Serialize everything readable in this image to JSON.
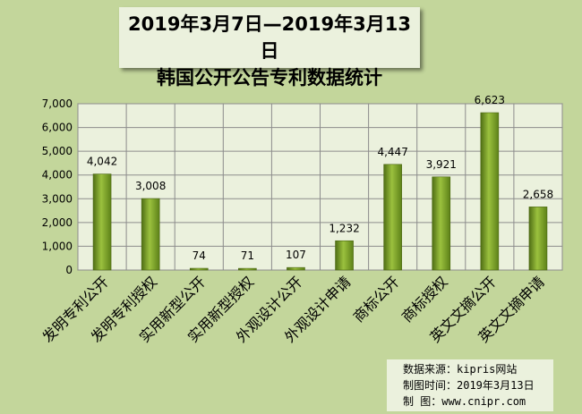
{
  "title": {
    "line1": "2019年3月7日—2019年3月13日",
    "line2": "韩国公开公告专利数据统计"
  },
  "source": {
    "line1": "数据来源：kipris网站",
    "line2": "制图时间：2019年3月13日",
    "line3": "制    图：www.cnipr.com"
  },
  "chart_data": {
    "type": "bar",
    "categories": [
      "发明专利公开",
      "发明专利授权",
      "实用新型公开",
      "实用新型授权",
      "外观设计公开",
      "外观设计申请",
      "商标公开",
      "商标授权",
      "英文文摘公开",
      "英文文摘申请"
    ],
    "values": [
      4042,
      3008,
      74,
      71,
      107,
      1232,
      4447,
      3921,
      6623,
      2658
    ],
    "value_labels": [
      "4,042",
      "3,008",
      "74",
      "71",
      "107",
      "1,232",
      "4,447",
      "3,921",
      "6,623",
      "2,658"
    ],
    "ylim": [
      0,
      7000
    ],
    "yticks": [
      0,
      1000,
      2000,
      3000,
      4000,
      5000,
      6000,
      7000
    ],
    "ytick_labels": [
      "0",
      "1,000",
      "2,000",
      "3,000",
      "4,000",
      "5,000",
      "6,000",
      "7,000"
    ],
    "grid": true,
    "bar_color": "#7aa32b",
    "plot_background": "#ebf1dd"
  }
}
